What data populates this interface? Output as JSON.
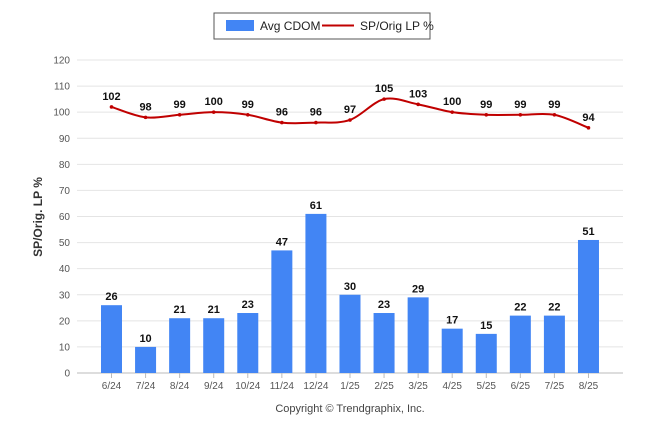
{
  "chart_data": {
    "type": "bar",
    "categories": [
      "6/24",
      "7/24",
      "8/24",
      "9/24",
      "10/24",
      "11/24",
      "12/24",
      "1/25",
      "2/25",
      "3/25",
      "4/25",
      "5/25",
      "6/25",
      "7/25",
      "8/25"
    ],
    "series": [
      {
        "name": "Avg CDOM",
        "type": "bar",
        "color": "#4285f4",
        "values": [
          26,
          10,
          21,
          21,
          23,
          47,
          61,
          30,
          23,
          29,
          17,
          15,
          22,
          22,
          51
        ]
      },
      {
        "name": "SP/Orig LP %",
        "type": "line",
        "color": "#c00000",
        "values": [
          102,
          98,
          99,
          100,
          99,
          96,
          96,
          97,
          105,
          103,
          100,
          99,
          99,
          99,
          94
        ]
      }
    ],
    "ylabel": "SP/Orig. LP %",
    "xlabel": "",
    "ylim": [
      0,
      120
    ],
    "yticks": [
      0,
      10,
      20,
      30,
      40,
      50,
      60,
      70,
      80,
      90,
      100,
      110,
      120
    ],
    "grid": true,
    "legend": "top-center"
  },
  "footer": {
    "copyright": "Copyright © Trendgraphix, Inc."
  }
}
